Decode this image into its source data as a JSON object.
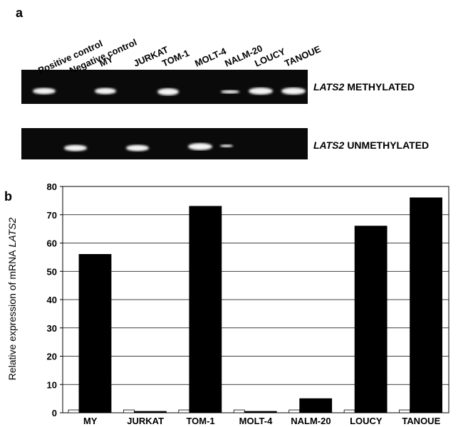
{
  "panel_labels": [
    "a",
    "b"
  ],
  "gel": {
    "lanes": [
      "Positive control",
      "Negative control",
      "MY",
      "JURKAT",
      "TOM-1",
      "MOLT-4",
      "NALM-20",
      "LOUCY",
      "TANOUE"
    ],
    "rows": [
      {
        "gene": "LATS2",
        "label": "METHYLATED"
      },
      {
        "gene": "LATS2",
        "label": "UNMETHYLATED"
      }
    ]
  },
  "chart_data": {
    "type": "bar",
    "ylabel": "Relative expression of mRNA",
    "ylabel_gene": "LATS2",
    "categories": [
      "MY",
      "JURKAT",
      "TOM-1",
      "MOLT-4",
      "NALM-20",
      "LOUCY",
      "TANOUE"
    ],
    "series": [
      {
        "color": "#ffffff",
        "values": [
          1,
          1,
          1,
          1,
          1,
          1,
          1
        ]
      },
      {
        "color": "#000000",
        "values": [
          56,
          0.5,
          73,
          0.5,
          5,
          66,
          76
        ]
      }
    ],
    "ylim": [
      0,
      80
    ],
    "yticks": [
      0,
      10,
      20,
      30,
      40,
      50,
      60,
      70,
      80
    ],
    "grid": true
  }
}
